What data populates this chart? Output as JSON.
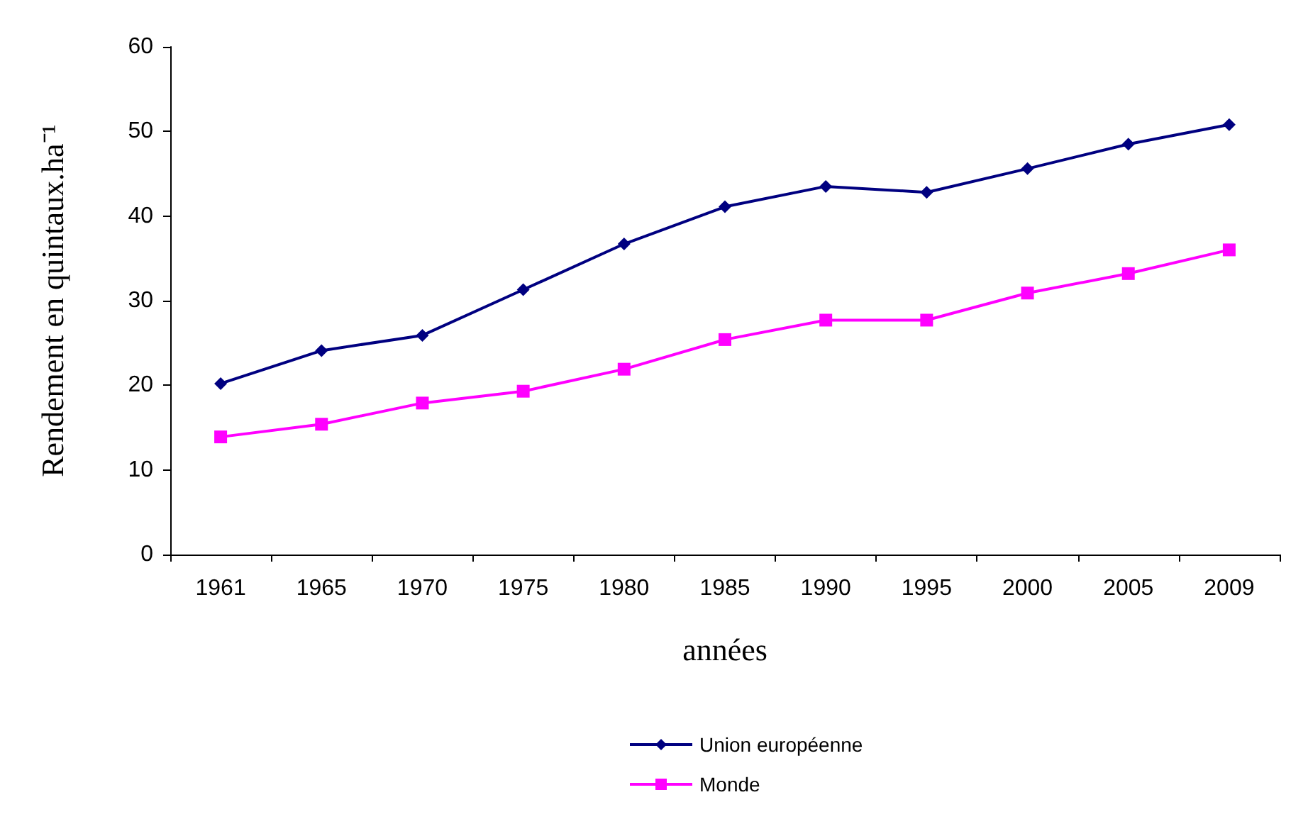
{
  "chart_data": {
    "type": "line",
    "xlabel": "années",
    "ylabel": "Rendement en quintaux.ha⁻¹",
    "categories": [
      "1961",
      "1965",
      "1970",
      "1975",
      "1980",
      "1985",
      "1990",
      "1995",
      "2000",
      "2005",
      "2009"
    ],
    "series": [
      {
        "name": "Union européenne",
        "color": "#000080",
        "marker": "diamond",
        "values": [
          20.2,
          24.1,
          25.9,
          31.3,
          36.7,
          41.1,
          43.5,
          42.8,
          45.6,
          48.5,
          50.8
        ]
      },
      {
        "name": "Monde",
        "color": "#ff00ff",
        "marker": "square",
        "values": [
          13.9,
          15.4,
          17.9,
          19.3,
          21.9,
          25.4,
          27.7,
          27.7,
          30.9,
          33.2,
          36.0
        ]
      }
    ],
    "ylim": [
      0,
      60
    ],
    "yticks": [
      0,
      10,
      20,
      30,
      40,
      50,
      60
    ],
    "grid": false,
    "legend": "bottom"
  }
}
